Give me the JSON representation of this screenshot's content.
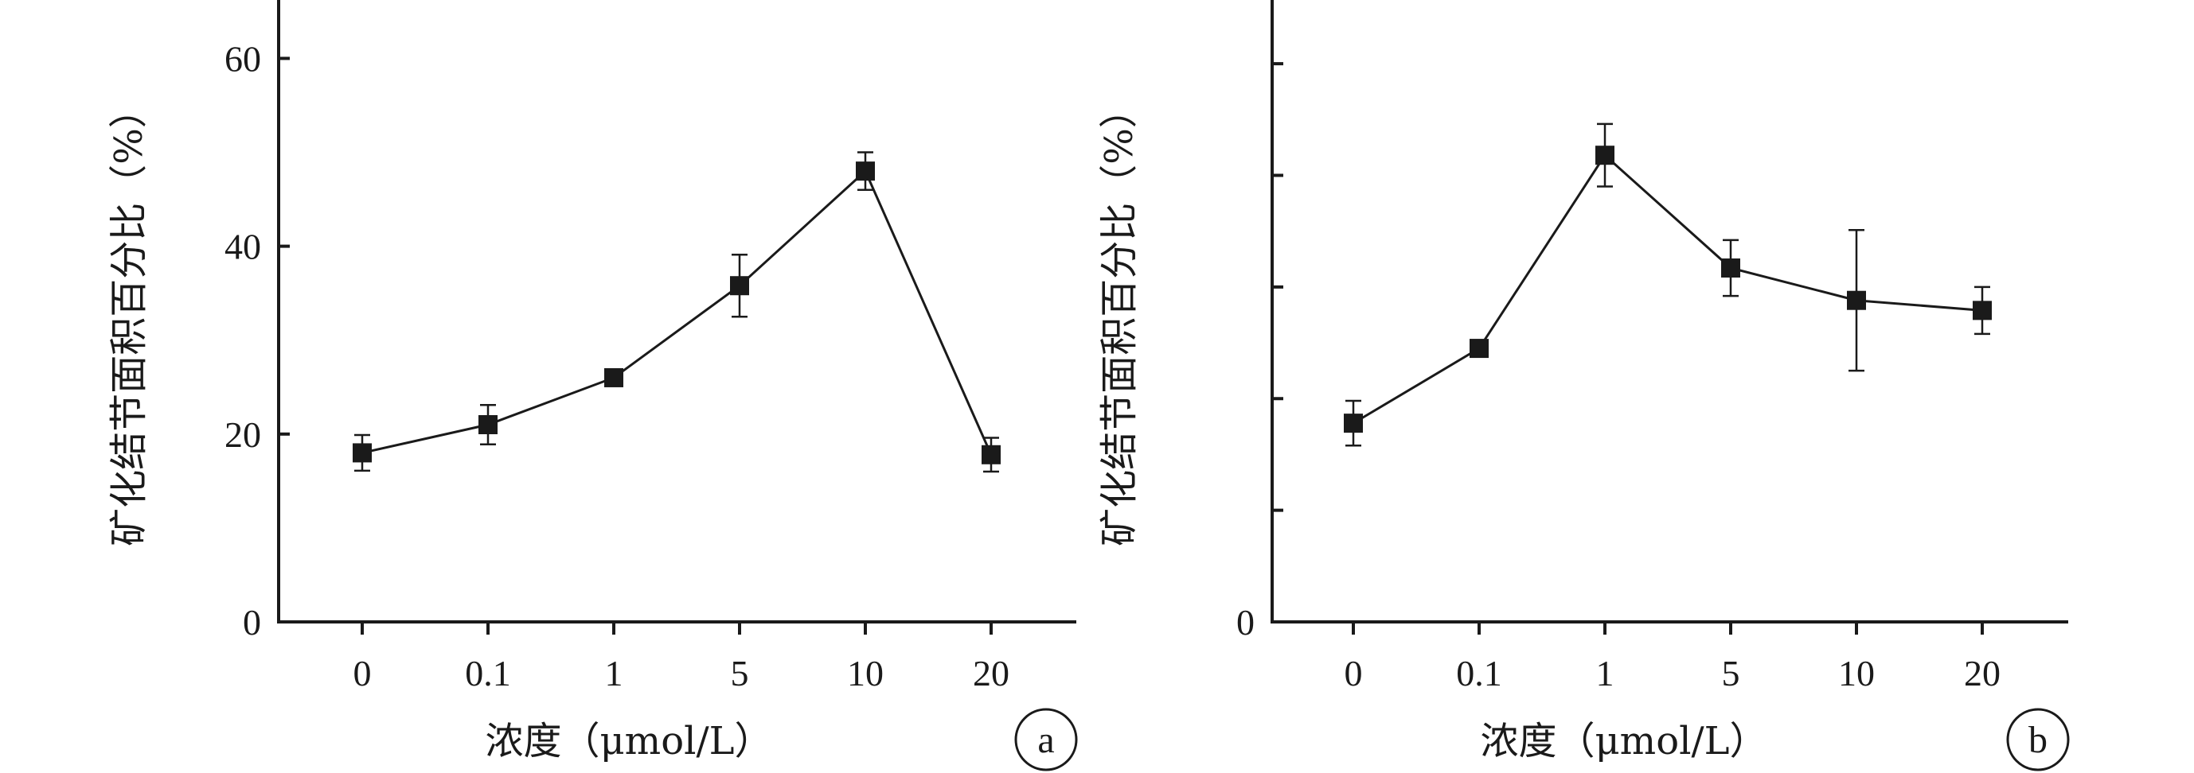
{
  "chart_data": [
    {
      "type": "line",
      "panel_label": "a",
      "categories": [
        "0",
        "0.1",
        "1",
        "5",
        "10",
        "20"
      ],
      "series": [
        {
          "values": [
            18,
            21,
            26,
            35.8,
            48,
            17.8
          ],
          "errors": [
            1.9,
            2.1,
            0.6,
            3.3,
            2.0,
            1.8
          ]
        }
      ],
      "ylim": [
        0,
        63
      ],
      "yticks": [
        0,
        20,
        40,
        60
      ],
      "ytick_labels": [
        "0",
        "20",
        "40",
        "60"
      ],
      "xlabel": "浓度（μmol/L）",
      "ylabel": "矿化结节面积百分比（%）"
    },
    {
      "type": "line",
      "panel_label": "b",
      "categories": [
        "0",
        "0.1",
        "1",
        "5",
        "10",
        "20"
      ],
      "series": [
        {
          "values": [
            17.8,
            24.5,
            41.8,
            31.7,
            28.8,
            27.9
          ],
          "errors": [
            2.0,
            0.6,
            2.8,
            2.5,
            6.3,
            2.1
          ]
        }
      ],
      "ylim": [
        0,
        53
      ],
      "yticks": [
        0,
        10,
        20,
        30,
        40,
        50
      ],
      "ytick_labels": [
        "0",
        "",
        "",
        "",
        "",
        ""
      ],
      "xlabel": "浓度（μmol/L）",
      "ylabel": "矿化结节面积百分比（%）"
    }
  ]
}
